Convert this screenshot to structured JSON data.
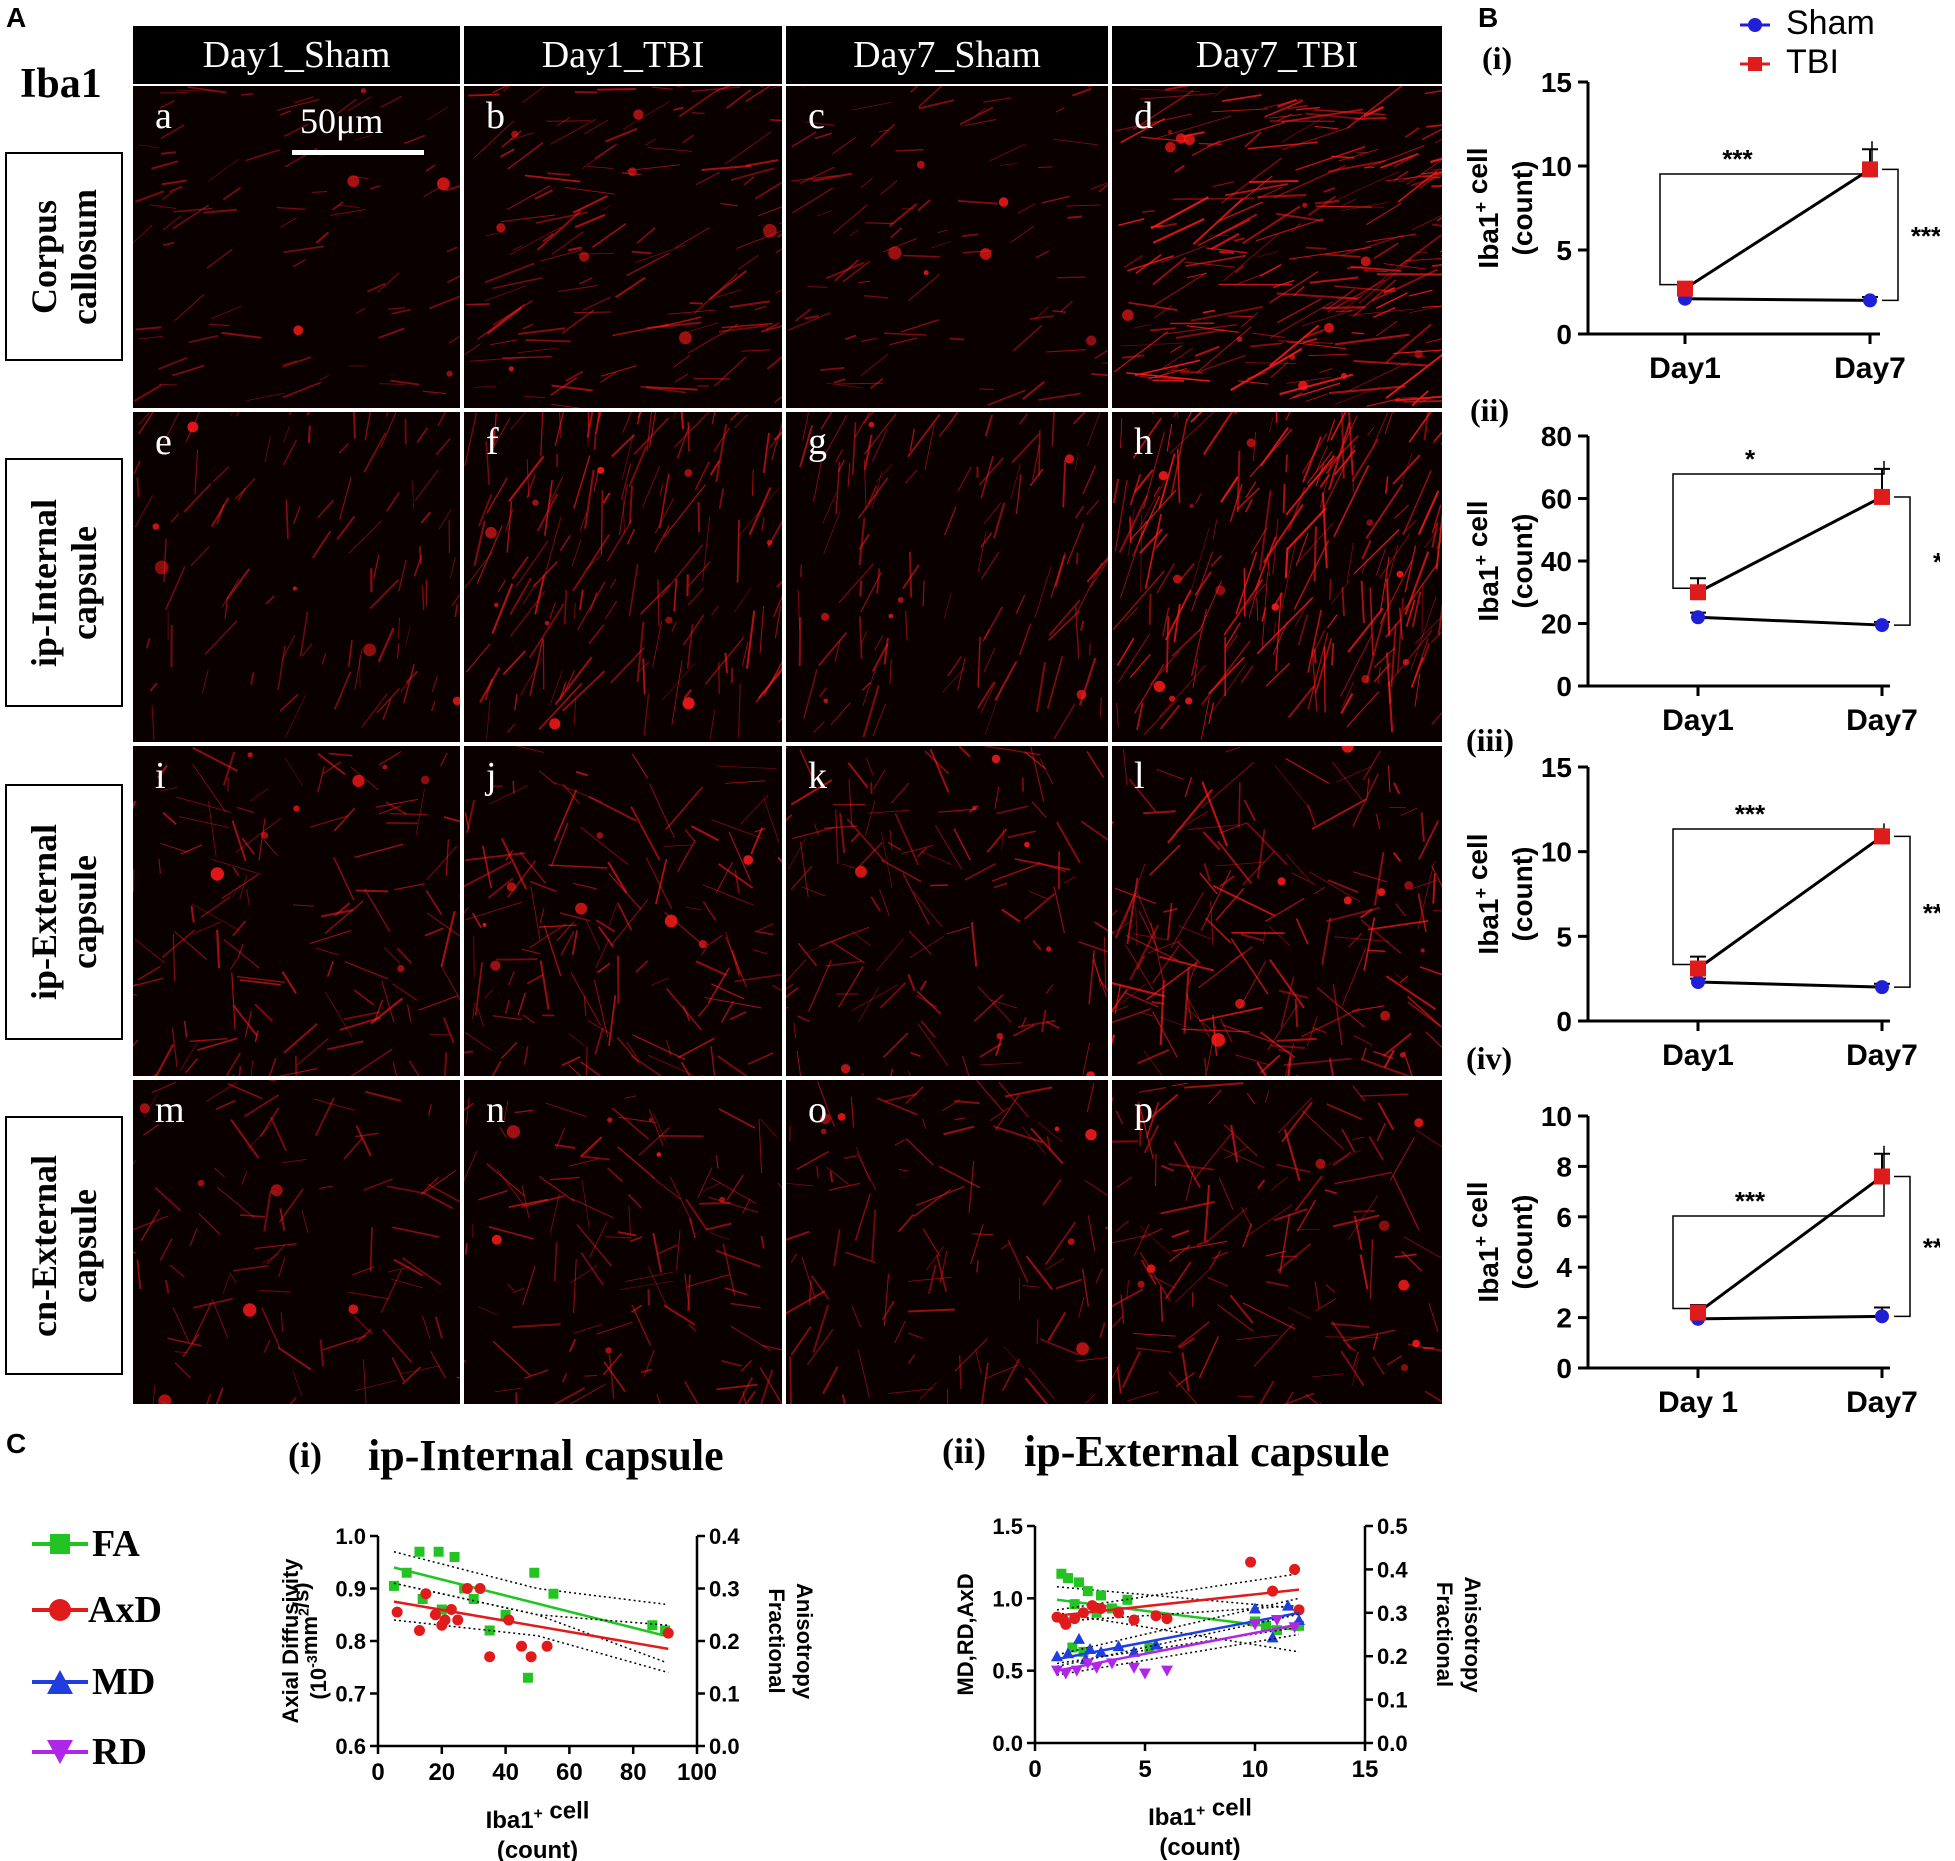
{
  "panel_labels": {
    "a": "A",
    "b": "B",
    "c": "C"
  },
  "marker_label": "Iba1",
  "scale_bar": "50μm",
  "column_headers": [
    "Day1_Sham",
    "Day1_TBI",
    "Day7_Sham",
    "Day7_TBI"
  ],
  "row_labels": [
    "Corpus\ncallosum",
    "ip-Internal\ncapsule",
    "ip-External\ncapsule",
    "cn-External\ncapsule"
  ],
  "image_letters": [
    "a",
    "b",
    "c",
    "d",
    "e",
    "f",
    "g",
    "h",
    "i",
    "j",
    "k",
    "l",
    "m",
    "n",
    "o",
    "p"
  ],
  "intensity": [
    0.18,
    0.42,
    0.22,
    0.85,
    0.25,
    0.55,
    0.35,
    0.8,
    0.4,
    0.45,
    0.4,
    0.6,
    0.25,
    0.35,
    0.3,
    0.45
  ],
  "colors": {
    "sham": "#1f1fd6",
    "tbi": "#e01b1b",
    "fa": "#22c322",
    "axd": "#e01b1b",
    "md": "#1f3ee0",
    "rd": "#b026e8",
    "stain": "#ff1a1a"
  },
  "legend_B": [
    {
      "name": "Sham",
      "marker": "circle"
    },
    {
      "name": "TBI",
      "marker": "square"
    }
  ],
  "legend_C": [
    {
      "name": "FA",
      "marker": "square"
    },
    {
      "name": "AxD",
      "marker": "circle"
    },
    {
      "name": "MD",
      "marker": "triangle-up"
    },
    {
      "name": "RD",
      "marker": "triangle-down"
    }
  ],
  "chart_data": [
    {
      "panel": "(i)",
      "type": "line",
      "categories": [
        "Day1",
        "Day7"
      ],
      "ylabel": "Iba1+ cell\n(count)",
      "ylim": [
        0,
        15
      ],
      "yticks": [
        0,
        5,
        10,
        15
      ],
      "series": [
        {
          "name": "Sham",
          "values": [
            2.1,
            2.0
          ],
          "err": [
            0.2,
            0.2
          ]
        },
        {
          "name": "TBI",
          "values": [
            2.7,
            9.8
          ],
          "err": [
            0.3,
            1.2
          ]
        }
      ],
      "annotations": [
        {
          "text": "***",
          "between": "day1-tbi"
        },
        {
          "text": "***",
          "between": "day7-groups"
        }
      ]
    },
    {
      "panel": "(ii)",
      "type": "line",
      "categories": [
        "Day1",
        "Day7"
      ],
      "ylabel": "Iba1+ cell\n(count)",
      "ylim": [
        0,
        80
      ],
      "yticks": [
        0,
        20,
        40,
        60,
        80
      ],
      "series": [
        {
          "name": "Sham",
          "values": [
            22,
            19.5
          ],
          "err": [
            1.5,
            1.0
          ]
        },
        {
          "name": "TBI",
          "values": [
            30,
            60.5
          ],
          "err": [
            4.5,
            9
          ]
        }
      ],
      "annotations": [
        {
          "text": "*",
          "between": "day1-tbi"
        },
        {
          "text": "*",
          "between": "day7-groups"
        }
      ]
    },
    {
      "panel": "(iii)",
      "type": "line",
      "categories": [
        "Day1",
        "Day7"
      ],
      "ylabel": "Iba1+ cell\n(count)",
      "ylim": [
        0,
        15
      ],
      "yticks": [
        0,
        5,
        10,
        15
      ],
      "series": [
        {
          "name": "Sham",
          "values": [
            2.3,
            2.0
          ],
          "err": [
            0.2,
            0.2
          ]
        },
        {
          "name": "TBI",
          "values": [
            3.1,
            10.9
          ],
          "err": [
            0.7,
            0.3
          ]
        }
      ],
      "annotations": [
        {
          "text": "***",
          "between": "day1-tbi"
        },
        {
          "text": "***",
          "between": "day7-groups"
        }
      ]
    },
    {
      "panel": "(iv)",
      "type": "line",
      "categories": [
        "Day 1",
        "Day7"
      ],
      "ylabel": "Iba1+ cell\n(count)",
      "ylim": [
        0,
        10
      ],
      "yticks": [
        0,
        2,
        4,
        6,
        8,
        10
      ],
      "series": [
        {
          "name": "Sham",
          "values": [
            1.95,
            2.05
          ],
          "err": [
            0.2,
            0.35
          ]
        },
        {
          "name": "TBI",
          "values": [
            2.2,
            7.6
          ],
          "err": [
            0.3,
            0.9
          ]
        }
      ],
      "annotations": [
        {
          "text": "***",
          "between": "day1-tbi"
        },
        {
          "text": "***",
          "between": "day7-groups"
        }
      ]
    },
    {
      "panel": "(i)",
      "type": "scatter",
      "title": "ip-Internal capsule",
      "xlabel": "Iba1+ cell\n(count)",
      "xlim": [
        0,
        100
      ],
      "xticks": [
        0,
        20,
        40,
        60,
        80,
        100
      ],
      "ylabel": "Axial Diffusivity\n(10-3mm2/s)",
      "ylim": [
        0.6,
        1.0
      ],
      "yticks": [
        0.6,
        0.7,
        0.8,
        0.9,
        1.0
      ],
      "y2label": "Fractional\nAnisotropy",
      "y2lim": [
        0.0,
        0.4
      ],
      "y2ticks": [
        0.0,
        0.1,
        0.2,
        0.3,
        0.4
      ],
      "series": [
        {
          "name": "FA",
          "axis": "right",
          "points": [
            [
              5,
              0.305
            ],
            [
              13,
              0.37
            ],
            [
              19,
              0.37
            ],
            [
              24,
              0.36
            ],
            [
              9,
              0.33
            ],
            [
              14,
              0.28
            ],
            [
              20,
              0.26
            ],
            [
              27,
              0.3
            ],
            [
              30,
              0.28
            ],
            [
              35,
              0.22
            ],
            [
              40,
              0.25
            ],
            [
              47,
              0.13
            ],
            [
              49,
              0.33
            ],
            [
              55,
              0.29
            ],
            [
              86,
              0.23
            ],
            [
              90,
              0.22
            ]
          ],
          "fit": [
            [
              5,
              0.34
            ],
            [
              90,
              0.21
            ]
          ],
          "ci_low": [
            [
              5,
              0.31
            ],
            [
              50,
              0.25
            ],
            [
              90,
              0.16
            ]
          ],
          "ci_high": [
            [
              5,
              0.37
            ],
            [
              50,
              0.3
            ],
            [
              90,
              0.27
            ]
          ]
        },
        {
          "name": "AxD",
          "axis": "left",
          "points": [
            [
              6,
              0.855
            ],
            [
              13,
              0.82
            ],
            [
              18,
              0.85
            ],
            [
              20,
              0.83
            ],
            [
              21,
              0.84
            ],
            [
              23,
              0.86
            ],
            [
              25,
              0.84
            ],
            [
              28,
              0.9
            ],
            [
              32,
              0.9
            ],
            [
              35,
              0.77
            ],
            [
              41,
              0.84
            ],
            [
              45,
              0.79
            ],
            [
              48,
              0.77
            ],
            [
              53,
              0.79
            ],
            [
              91,
              0.815
            ],
            [
              15,
              0.89
            ]
          ],
          "fit": [
            [
              5,
              0.875
            ],
            [
              91,
              0.785
            ]
          ],
          "ci_low": [
            [
              5,
              0.84
            ],
            [
              50,
              0.81
            ],
            [
              91,
              0.74
            ]
          ],
          "ci_high": [
            [
              5,
              0.91
            ],
            [
              50,
              0.85
            ],
            [
              91,
              0.83
            ]
          ]
        }
      ]
    },
    {
      "panel": "(ii)",
      "type": "scatter",
      "title": "ip-External capsule",
      "xlabel": "Iba1+ cell\n(count)",
      "xlim": [
        0,
        15
      ],
      "xticks": [
        0,
        5,
        10,
        15
      ],
      "ylabel": "MD,RD,AxD",
      "ylim": [
        0.0,
        1.5
      ],
      "yticks": [
        0.0,
        0.5,
        1.0,
        1.5
      ],
      "y2label": "Fractional\nAnisotropy",
      "y2lim": [
        0.0,
        0.5
      ],
      "y2ticks": [
        0.0,
        0.1,
        0.2,
        0.3,
        0.4,
        0.5
      ],
      "series": [
        {
          "name": "FA",
          "axis": "right",
          "points": [
            [
              1.2,
              0.39
            ],
            [
              1.5,
              0.38
            ],
            [
              2,
              0.37
            ],
            [
              2.4,
              0.35
            ],
            [
              1.8,
              0.32
            ],
            [
              3,
              0.34
            ],
            [
              3.5,
              0.31
            ],
            [
              4.2,
              0.33
            ],
            [
              1.7,
              0.22
            ],
            [
              2.2,
              0.21
            ],
            [
              5.2,
              0.22
            ],
            [
              10,
              0.28
            ],
            [
              10.5,
              0.27
            ],
            [
              11,
              0.26
            ],
            [
              12,
              0.27
            ],
            [
              2.8,
              0.3
            ]
          ],
          "fit": [
            [
              1,
              0.33
            ],
            [
              12,
              0.26
            ]
          ],
          "ci_low": [
            [
              1,
              0.3
            ],
            [
              12,
              0.21
            ]
          ],
          "ci_high": [
            [
              1,
              0.36
            ],
            [
              12,
              0.31
            ]
          ]
        },
        {
          "name": "AxD",
          "axis": "left",
          "points": [
            [
              1,
              0.87
            ],
            [
              1.3,
              0.85
            ],
            [
              1.8,
              0.86
            ],
            [
              2.2,
              0.9
            ],
            [
              2.6,
              0.95
            ],
            [
              3,
              0.93
            ],
            [
              3.8,
              0.9
            ],
            [
              4.5,
              0.85
            ],
            [
              5.5,
              0.88
            ],
            [
              6,
              0.86
            ],
            [
              9.8,
              1.25
            ],
            [
              10.8,
              1.05
            ],
            [
              11.8,
              1.2
            ],
            [
              12,
              0.92
            ],
            [
              1.4,
              0.82
            ]
          ],
          "fit": [
            [
              1,
              0.88
            ],
            [
              12,
              1.06
            ]
          ],
          "ci_low": [
            [
              1,
              0.84
            ],
            [
              12,
              0.95
            ]
          ],
          "ci_high": [
            [
              1,
              0.92
            ],
            [
              12,
              1.17
            ]
          ]
        },
        {
          "name": "MD",
          "axis": "left",
          "points": [
            [
              1,
              0.6
            ],
            [
              1.5,
              0.62
            ],
            [
              2,
              0.72
            ],
            [
              2.5,
              0.65
            ],
            [
              3,
              0.63
            ],
            [
              3.8,
              0.67
            ],
            [
              4.5,
              0.63
            ],
            [
              5.5,
              0.68
            ],
            [
              10,
              0.93
            ],
            [
              10.8,
              0.73
            ],
            [
              11.5,
              0.95
            ],
            [
              12,
              0.85
            ],
            [
              2.3,
              0.58
            ]
          ],
          "fit": [
            [
              1,
              0.58
            ],
            [
              12,
              0.9
            ]
          ],
          "ci_low": [
            [
              1,
              0.55
            ],
            [
              12,
              0.8
            ]
          ],
          "ci_high": [
            [
              1,
              0.61
            ],
            [
              12,
              1.0
            ]
          ]
        },
        {
          "name": "RD",
          "axis": "left",
          "points": [
            [
              1,
              0.5
            ],
            [
              1.4,
              0.48
            ],
            [
              1.9,
              0.5
            ],
            [
              2.4,
              0.55
            ],
            [
              2.8,
              0.52
            ],
            [
              3.5,
              0.55
            ],
            [
              4.5,
              0.52
            ],
            [
              5,
              0.48
            ],
            [
              6,
              0.5
            ],
            [
              10,
              0.82
            ],
            [
              11,
              0.85
            ],
            [
              11.8,
              0.8
            ]
          ],
          "fit": [
            [
              1,
              0.5
            ],
            [
              12,
              0.82
            ]
          ],
          "ci_low": [
            [
              1,
              0.47
            ],
            [
              12,
              0.75
            ]
          ],
          "ci_high": [
            [
              1,
              0.53
            ],
            [
              12,
              0.89
            ]
          ]
        }
      ]
    }
  ]
}
